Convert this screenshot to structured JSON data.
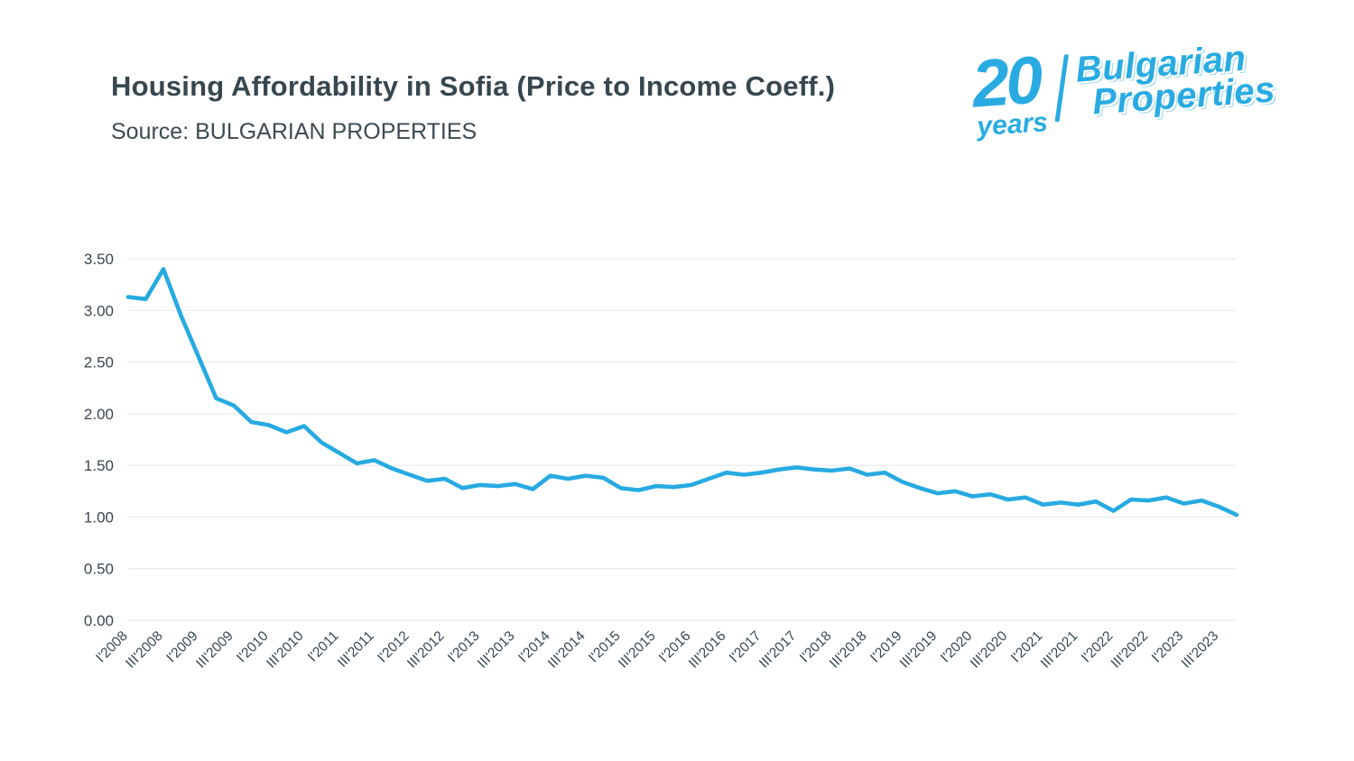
{
  "header": {
    "title": "Housing Affordability in Sofia (Price to Income Coeff.)",
    "source": "Source: BULGARIAN PROPERTIES"
  },
  "logo": {
    "number": "20",
    "years": "years",
    "line1": "Bulgarian",
    "line2": "Properties",
    "color": "#29abe2"
  },
  "chart_data": {
    "type": "line",
    "title": "Housing Affordability in Sofia (Price to Income Coeff.)",
    "subtitle": "Source: BULGARIAN PROPERTIES",
    "series_name": "Price to Income Coefficient",
    "series_color": "#27aae1",
    "grid": true,
    "legend_position": "none",
    "ylim": [
      0,
      3.5
    ],
    "ytick_step": 0.5,
    "xtick_every": 2,
    "x": [
      "I'2008",
      "II'2008",
      "III'2008",
      "IV'2008",
      "I'2009",
      "II'2009",
      "III'2009",
      "IV'2009",
      "I'2010",
      "II'2010",
      "III'2010",
      "IV'2010",
      "I'2011",
      "II'2011",
      "III'2011",
      "IV'2011",
      "I'2012",
      "II'2012",
      "III'2012",
      "IV'2012",
      "I'2013",
      "II'2013",
      "III'2013",
      "IV'2013",
      "I'2014",
      "II'2014",
      "III'2014",
      "IV'2014",
      "I'2015",
      "II'2015",
      "III'2015",
      "IV'2015",
      "I'2016",
      "II'2016",
      "III'2016",
      "IV'2016",
      "I'2017",
      "II'2017",
      "III'2017",
      "IV'2017",
      "I'2018",
      "II'2018",
      "III'2018",
      "IV'2018",
      "I'2019",
      "II'2019",
      "III'2019",
      "IV'2019",
      "I'2020",
      "II'2020",
      "III'2020",
      "IV'2020",
      "I'2021",
      "II'2021",
      "III'2021",
      "IV'2021",
      "I'2022",
      "II'2022",
      "III'2022",
      "IV'2022",
      "I'2023",
      "II'2023",
      "III'2023",
      "IV'2023"
    ],
    "values": [
      3.13,
      3.11,
      3.4,
      2.95,
      2.55,
      2.15,
      2.08,
      1.92,
      1.89,
      1.82,
      1.88,
      1.72,
      1.62,
      1.52,
      1.55,
      1.47,
      1.41,
      1.35,
      1.37,
      1.28,
      1.31,
      1.3,
      1.32,
      1.27,
      1.4,
      1.37,
      1.4,
      1.38,
      1.28,
      1.26,
      1.3,
      1.29,
      1.31,
      1.37,
      1.43,
      1.41,
      1.43,
      1.46,
      1.48,
      1.46,
      1.45,
      1.47,
      1.41,
      1.43,
      1.34,
      1.28,
      1.23,
      1.25,
      1.2,
      1.22,
      1.17,
      1.19,
      1.12,
      1.14,
      1.12,
      1.15,
      1.06,
      1.17,
      1.16,
      1.19,
      1.13,
      1.16,
      1.1,
      1.02
    ]
  }
}
